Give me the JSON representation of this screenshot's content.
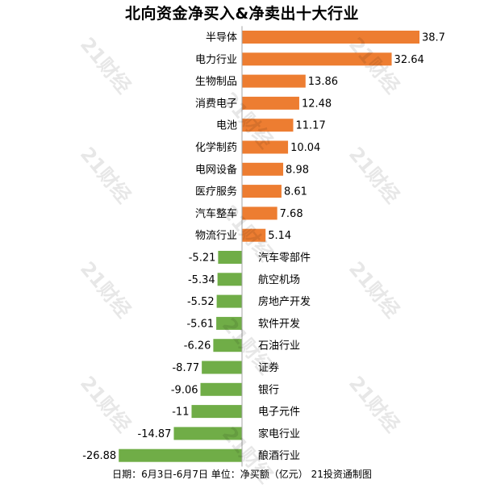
{
  "chart_data": {
    "type": "bar",
    "orientation": "horizontal",
    "title": "北向资金净买入&净卖出十大行业",
    "categories": [
      "半导体",
      "电力行业",
      "生物制品",
      "消费电子",
      "电池",
      "化学制药",
      "电网设备",
      "医疗服务",
      "汽车整车",
      "物流行业",
      "汽车零部件",
      "航空机场",
      "房地产开发",
      "软件开发",
      "石油行业",
      "证券",
      "银行",
      "电子元件",
      "家电行业",
      "酿酒行业"
    ],
    "values": [
      38.7,
      32.64,
      13.86,
      12.48,
      11.17,
      10.04,
      8.98,
      8.61,
      7.68,
      5.14,
      -5.21,
      -5.34,
      -5.52,
      -5.61,
      -6.26,
      -8.77,
      -9.06,
      -11,
      -14.87,
      -26.88
    ],
    "value_labels": [
      "38.7",
      "32.64",
      "13.86",
      "12.48",
      "11.17",
      "10.04",
      "8.98",
      "8.61",
      "7.68",
      "5.14",
      "-5.21",
      "-5.34",
      "-5.52",
      "-5.61",
      "-6.26",
      "-8.77",
      "-9.06",
      "-11",
      "-14.87",
      "-26.88"
    ],
    "colors": {
      "positive": "#ED7D31",
      "negative": "#70AD47",
      "axis": "#A6A6A6"
    },
    "xlabel": "",
    "ylabel": "",
    "grid": false,
    "legend": "none"
  },
  "footer": "日期：6月3日-6月7日 单位：净买额（亿元） 21投资通制图",
  "watermark_text": "21财经"
}
